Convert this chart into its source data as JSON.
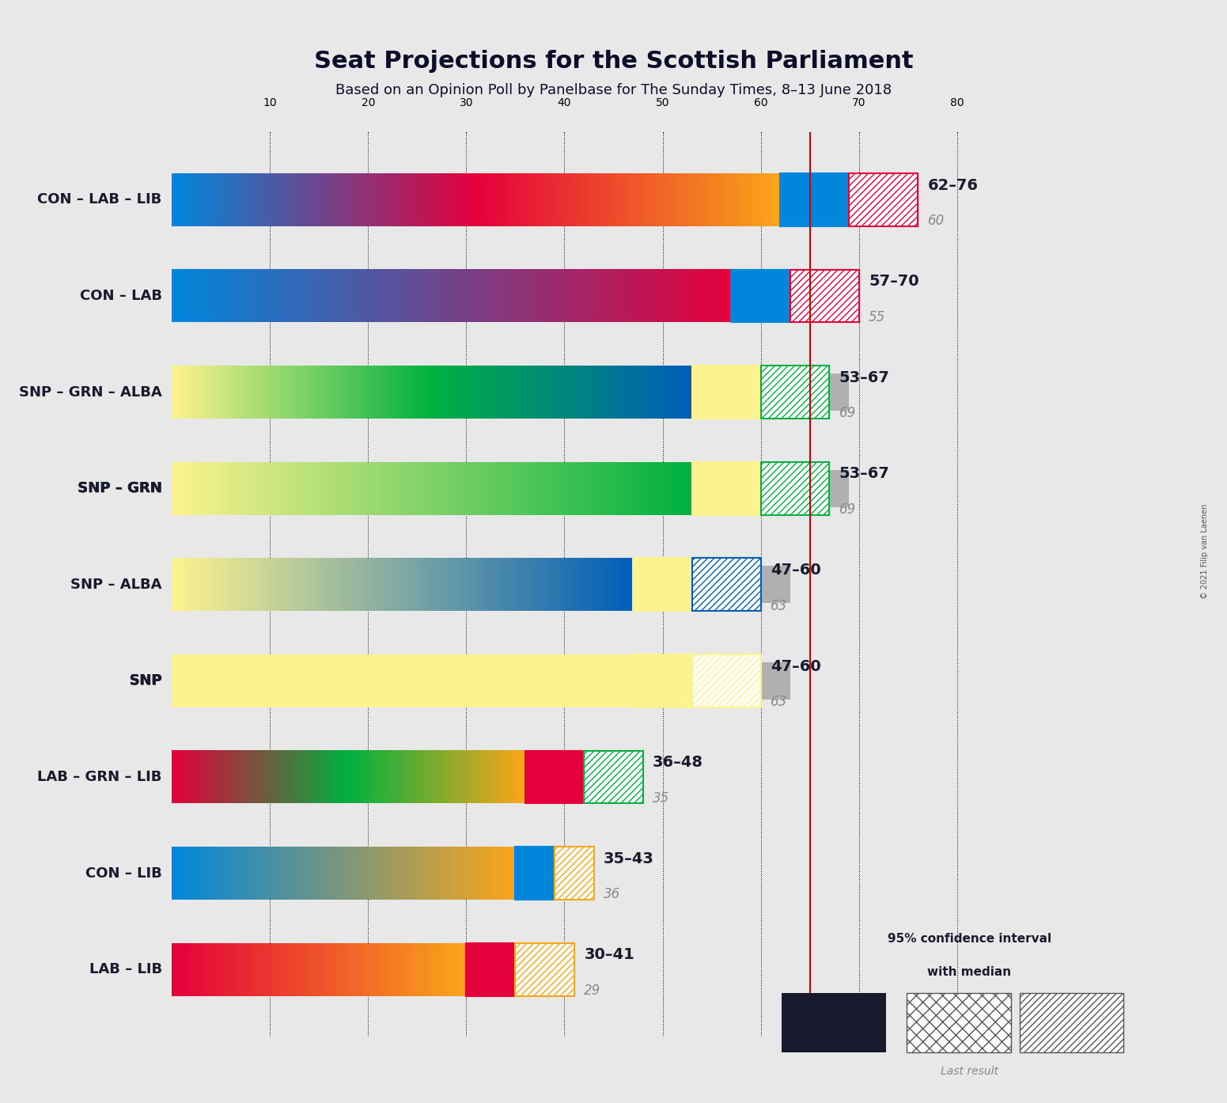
{
  "title": "Seat Projections for the Scottish Parliament",
  "subtitle": "Based on an Opinion Poll by Panelbase for The Sunday Times, 8–13 June 2018",
  "copyright": "© 2021 Filip van Laenen",
  "background_color": "#e8e8e8",
  "majority_line": 65,
  "x_max": 90,
  "x_min": 0,
  "dotted_lines": [
    10,
    20,
    30,
    40,
    50,
    60,
    70,
    80
  ],
  "coalitions": [
    {
      "name": "CON – LAB – LIB",
      "range_low": 62,
      "range_high": 76,
      "median": 69,
      "last_result": 60,
      "colors": [
        "#0087DC",
        "#E4003B",
        "#FAA61A"
      ],
      "ci_color": "#0087DC",
      "hatch_color": "#E4003B",
      "underline": false
    },
    {
      "name": "CON – LAB",
      "range_low": 57,
      "range_high": 70,
      "median": 63,
      "last_result": 55,
      "colors": [
        "#0087DC",
        "#E4003B"
      ],
      "ci_color": "#0087DC",
      "hatch_color": "#E4003B",
      "underline": false
    },
    {
      "name": "SNP – GRN – ALBA",
      "range_low": 53,
      "range_high": 67,
      "median": 60,
      "last_result": 69,
      "colors": [
        "#FDF38E",
        "#00B140",
        "#005EB8"
      ],
      "ci_color": "#FDF38E",
      "hatch_color": "#00B140",
      "underline": false
    },
    {
      "name": "SNP – GRN",
      "range_low": 53,
      "range_high": 67,
      "median": 60,
      "last_result": 69,
      "colors": [
        "#FDF38E",
        "#00B140"
      ],
      "ci_color": "#FDF38E",
      "hatch_color": "#00B140",
      "underline": true
    },
    {
      "name": "SNP – ALBA",
      "range_low": 47,
      "range_high": 60,
      "median": 53,
      "last_result": 63,
      "colors": [
        "#FDF38E",
        "#005EB8"
      ],
      "ci_color": "#FDF38E",
      "hatch_color": "#005EB8",
      "underline": false
    },
    {
      "name": "SNP",
      "range_low": 47,
      "range_high": 60,
      "median": 53,
      "last_result": 63,
      "colors": [
        "#FDF38E"
      ],
      "ci_color": "#FDF38E",
      "hatch_color": "#FDF38E",
      "underline": true
    },
    {
      "name": "LAB – GRN – LIB",
      "range_low": 36,
      "range_high": 48,
      "median": 42,
      "last_result": 35,
      "colors": [
        "#E4003B",
        "#00B140",
        "#FAA61A"
      ],
      "ci_color": "#E4003B",
      "hatch_color": "#00B140",
      "underline": false
    },
    {
      "name": "CON – LIB",
      "range_low": 35,
      "range_high": 43,
      "median": 39,
      "last_result": 36,
      "colors": [
        "#0087DC",
        "#FAA61A"
      ],
      "ci_color": "#0087DC",
      "hatch_color": "#FAA61A",
      "underline": false
    },
    {
      "name": "LAB – LIB",
      "range_low": 30,
      "range_high": 41,
      "median": 35,
      "last_result": 29,
      "colors": [
        "#E4003B",
        "#FAA61A"
      ],
      "ci_color": "#E4003B",
      "hatch_color": "#FAA61A",
      "underline": false
    }
  ]
}
